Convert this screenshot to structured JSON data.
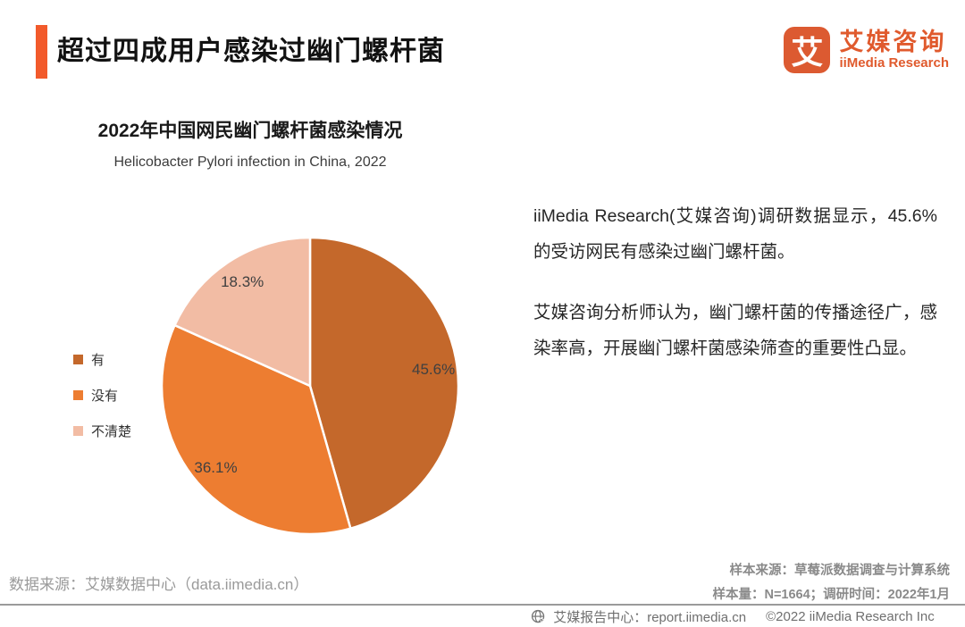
{
  "header": {
    "title": "超过四成用户感染过幽门螺杆菌",
    "logo": {
      "icon_char": "艾",
      "name_cn": "艾媒咨询",
      "name_en": "iiMedia Research"
    }
  },
  "chart_data": {
    "type": "pie",
    "title": "2022年中国网民幽门螺杆菌感染情况",
    "subtitle": "Helicobacter Pylori infection in China, 2022",
    "categories": [
      "有",
      "没有",
      "不清楚"
    ],
    "values": [
      45.6,
      36.1,
      18.3
    ],
    "labels": [
      "45.6%",
      "36.1%",
      "18.3%"
    ],
    "unit": "%",
    "colors": [
      "#c4682b",
      "#ed7d31",
      "#f2bca4"
    ],
    "label_color": "#404040",
    "start_angle": "top, clockwise",
    "legend_position": "left"
  },
  "insight": {
    "paragraph1": "iiMedia Research(艾媒咨询)调研数据显示，45.6%的受访网民有感染过幽门螺杆菌。",
    "paragraph2": "艾媒咨询分析师认为，幽门螺杆菌的传播途径广，感染率高，开展幽门螺杆菌感染筛查的重要性凸显。"
  },
  "sources": {
    "data_source": "数据来源：艾媒数据中心（data.iimedia.cn）",
    "sample_source": "样本来源：草莓派数据调查与计算系统",
    "sample_info": "样本量：N=1664；调研时间：2022年1月"
  },
  "footer": {
    "report_center": "艾媒报告中心：report.iimedia.cn",
    "copyright": "©2022 iiMedia Research Inc"
  },
  "theme": {
    "accent": "#f25a2b",
    "logo_orange": "#e05a2d"
  }
}
